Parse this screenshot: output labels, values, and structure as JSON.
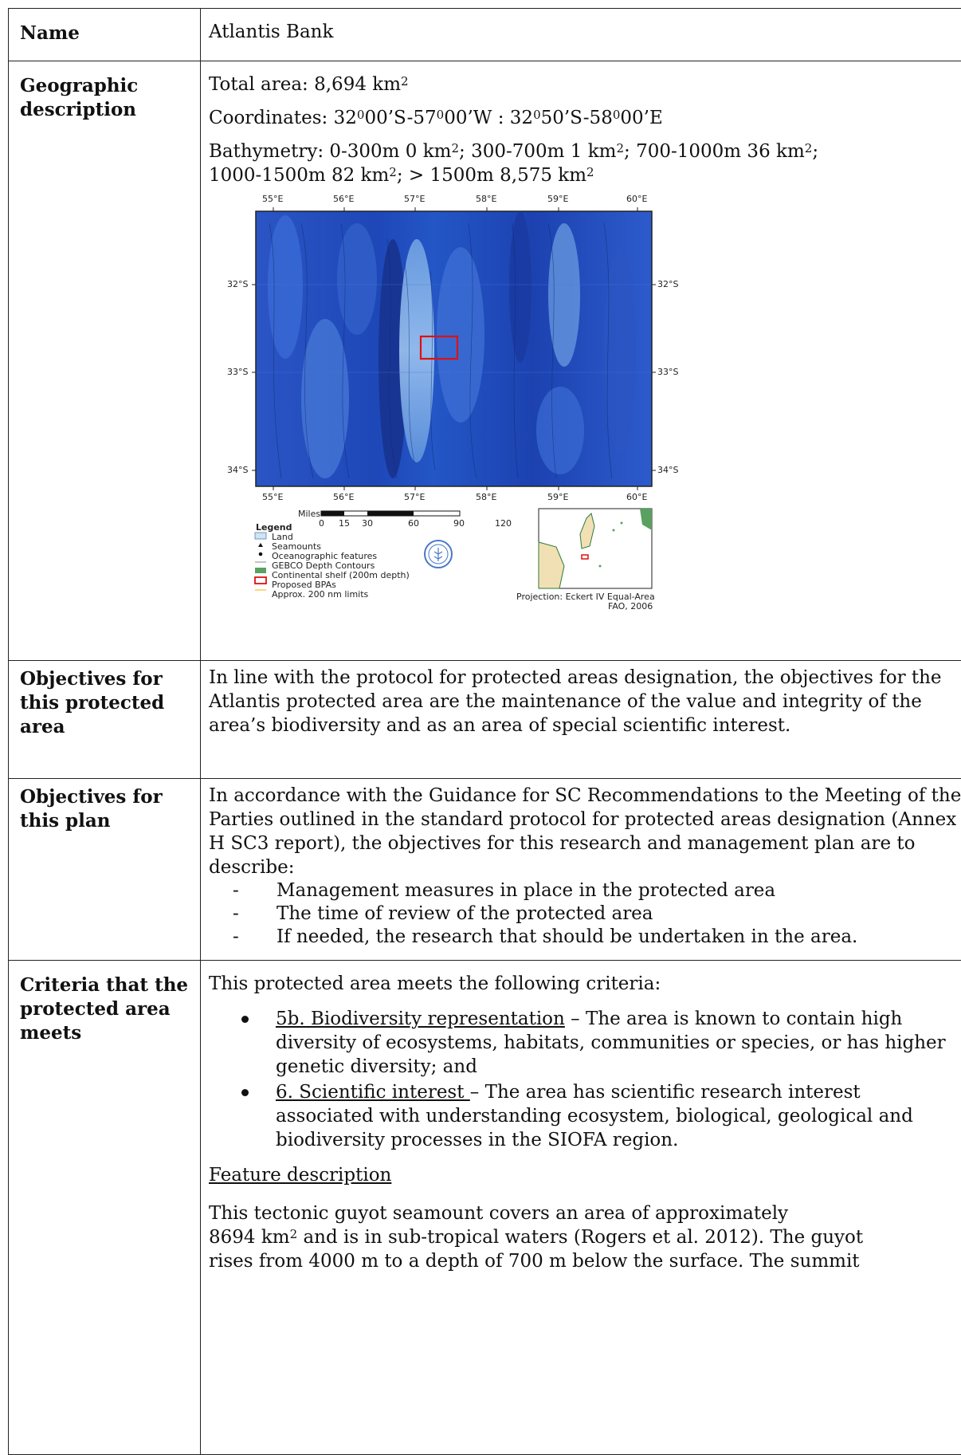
{
  "rows": {
    "name": {
      "label": "Name",
      "value": "Atlantis Bank"
    },
    "geo": {
      "label": "Geographic description",
      "area_text": "Total area: 8,694 km",
      "area_sup": "2",
      "coords_parts": [
        "Coordinates:  32",
        "0",
        "00’S-57",
        "0",
        "00’W :  32",
        "0",
        "50’S-58",
        "0",
        "00’E"
      ],
      "bathy_parts": [
        "Bathymetry: 0-300m 0 km",
        "2",
        "; 300-700m 1 km",
        "2",
        "; 700-1000m 36 km",
        "2",
        ";",
        "1000-1500m 82 km",
        "2",
        "; > 1500m 8,575 km",
        "2"
      ]
    },
    "obj_area": {
      "label": "Objectives for this protected area",
      "text": "In line with the protocol for protected areas designation, the objectives for the Atlantis protected area are the maintenance of the value and integrity of the area’s biodiversity and as an area of special scientific interest."
    },
    "obj_plan": {
      "label": "Objectives for this plan",
      "text": "In accordance with the Guidance for SC Recommendations to the Meeting of the Parties outlined in the standard protocol for protected areas designation (Annex H SC3 report), the objectives for this research and management plan are to describe:",
      "items": [
        "Management measures in place in the protected area",
        "The time of review of the protected area",
        "If needed, the research that should be undertaken in the area."
      ]
    },
    "criteria": {
      "label": "Criteria that the protected area meets",
      "intro": "This protected area meets the following criteria:",
      "items": [
        {
          "head": "5b. Biodiversity representation",
          "body": " – The area is known to contain high diversity of ecosystems, habitats, communities or species, or has higher genetic diversity; and"
        },
        {
          "head": "6. Scientific interest ",
          "body": "– The area has scientific research interest associated with understanding ecosystem, biological, geological and biodiversity processes in the SIOFA region."
        }
      ],
      "feature_heading": "Feature description",
      "feature_p1": "This tectonic guyot seamount covers an area of approximately",
      "feature_p2a": "8694 km",
      "feature_p2sup": "2",
      "feature_p2b": " and is in sub-tropical waters (Rogers et al. 2012). The guyot",
      "feature_p3": "rises from 4000 m to a depth of 700 m below the surface. The summit"
    }
  },
  "map": {
    "lon_labels": [
      "55°E",
      "56°E",
      "57°E",
      "58°E",
      "59°E",
      "60°E"
    ],
    "lat_labels": [
      "32°S",
      "33°S",
      "34°S"
    ],
    "scale": {
      "title": "Miles",
      "ticks": [
        "0",
        "15",
        "30",
        "60",
        "90",
        "120"
      ]
    },
    "legend": {
      "title": "Legend",
      "items": [
        "Land",
        "Seamounts",
        "Oceanographic features",
        "GEBCO Depth Contours",
        "Continental shelf (200m depth)",
        "Proposed BPAs",
        "Approx. 200 nm limits"
      ]
    },
    "projection": "Projection: Eckert IV Equal-Area",
    "credit": "FAO, 2006",
    "colors": {
      "ocean_deep": "#1a3fb0",
      "ocean_mid": "#2f62d0",
      "ridge": "#8ab8ec",
      "bpa": "#e01010",
      "shelf": "#5aa060",
      "land": "#f1e0b4",
      "limit": "#f0c030"
    }
  }
}
